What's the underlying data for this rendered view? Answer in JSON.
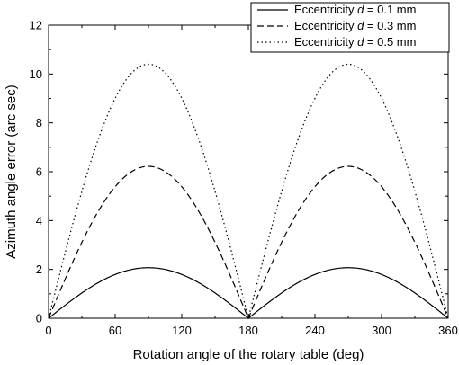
{
  "chart_data": {
    "type": "line",
    "xlabel": "Rotation angle of the rotary table (deg)",
    "ylabel": "Azimuth angle error (arc sec)",
    "xlim": [
      0,
      360
    ],
    "ylim": [
      0,
      12
    ],
    "xticks": [
      0,
      60,
      120,
      180,
      240,
      300,
      360
    ],
    "yticks": [
      0,
      2,
      4,
      6,
      8,
      10,
      12
    ],
    "grid": false,
    "legend_position": "top-right",
    "x": [
      0,
      15,
      30,
      45,
      60,
      75,
      90,
      105,
      120,
      135,
      150,
      165,
      180,
      195,
      210,
      225,
      240,
      255,
      270,
      285,
      300,
      315,
      330,
      345,
      360
    ],
    "series": [
      {
        "name_prefix": "Eccentricity ",
        "name_var": "d",
        "name_suffix": " = 0.1 mm",
        "style": "solid",
        "values": [
          0,
          0.53,
          1.03,
          1.46,
          1.79,
          2.0,
          2.07,
          2.0,
          1.79,
          1.46,
          1.03,
          0.53,
          0,
          0.53,
          1.03,
          1.46,
          1.79,
          2.0,
          2.07,
          2.0,
          1.79,
          1.46,
          1.03,
          0.53,
          0
        ]
      },
      {
        "name_prefix": "Eccentricity ",
        "name_var": "d",
        "name_suffix": " = 0.3 mm",
        "style": "dashed",
        "values": [
          0,
          1.61,
          3.11,
          4.4,
          5.39,
          6.01,
          6.22,
          6.01,
          5.39,
          4.4,
          3.11,
          1.61,
          0,
          1.61,
          3.11,
          4.4,
          5.39,
          6.01,
          6.22,
          6.01,
          5.39,
          4.4,
          3.11,
          1.61,
          0
        ]
      },
      {
        "name_prefix": "Eccentricity ",
        "name_var": "d",
        "name_suffix": " = 0.5 mm",
        "style": "dotted",
        "values": [
          0,
          2.69,
          5.2,
          7.35,
          9.0,
          10.04,
          10.4,
          10.04,
          9.0,
          7.35,
          5.2,
          2.69,
          0,
          2.69,
          5.2,
          7.35,
          9.0,
          10.04,
          10.4,
          10.04,
          9.0,
          7.35,
          5.2,
          2.69,
          0
        ]
      }
    ]
  }
}
